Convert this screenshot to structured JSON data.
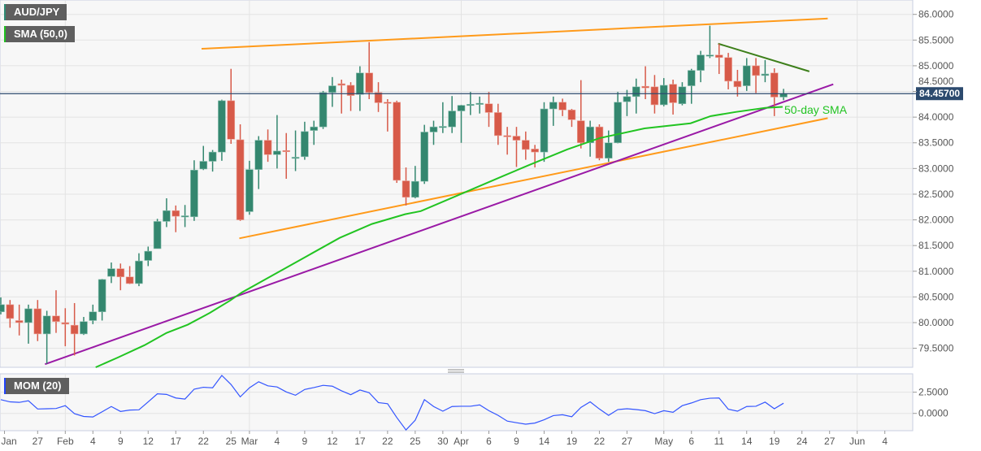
{
  "legend": {
    "symbol_label": "AUD/JPY",
    "sma_label": "SMA (50,0)",
    "mom_label": "MOM (20)"
  },
  "colors": {
    "up": "#34876f",
    "down": "#d75a49",
    "sma": "#22c422",
    "support_line": "#9a1aa6",
    "channel": "#ff9a1a",
    "resistance": "#3d7f1a",
    "mom": "#3355ff",
    "price_tag": "#2c4a6e",
    "symbol_accent": "#2e8b74",
    "sma_accent": "#1fc21f",
    "mom_accent": "#2244ff"
  },
  "chart_data": {
    "type": "candlestick",
    "title": "AUD/JPY",
    "last_price": 84.457,
    "last_price_label": "84.45700",
    "ylim": [
      79.13,
      86.28
    ],
    "y_ticks": [
      "86.0000",
      "85.5000",
      "85.0000",
      "84.5000",
      "84.0000",
      "83.5000",
      "83.0000",
      "82.5000",
      "82.0000",
      "81.5000",
      "81.0000",
      "80.5000",
      "80.0000",
      "79.5000"
    ],
    "x_ticks": [
      {
        "label": "Jan",
        "index": 0.4
      },
      {
        "label": "27",
        "index": 4
      },
      {
        "label": "Feb",
        "index": 7
      },
      {
        "label": "4",
        "index": 10
      },
      {
        "label": "9",
        "index": 13
      },
      {
        "label": "12",
        "index": 16
      },
      {
        "label": "17",
        "index": 19
      },
      {
        "label": "22",
        "index": 22
      },
      {
        "label": "25",
        "index": 25
      },
      {
        "label": "Mar",
        "index": 27
      },
      {
        "label": "4",
        "index": 30
      },
      {
        "label": "9",
        "index": 33
      },
      {
        "label": "12",
        "index": 36
      },
      {
        "label": "17",
        "index": 39
      },
      {
        "label": "22",
        "index": 42
      },
      {
        "label": "25",
        "index": 45
      },
      {
        "label": "30",
        "index": 48
      },
      {
        "label": "Apr",
        "index": 50
      },
      {
        "label": "6",
        "index": 53
      },
      {
        "label": "9",
        "index": 56
      },
      {
        "label": "14",
        "index": 59
      },
      {
        "label": "19",
        "index": 62
      },
      {
        "label": "22",
        "index": 65
      },
      {
        "label": "27",
        "index": 68
      },
      {
        "label": "May",
        "index": 72
      },
      {
        "label": "6",
        "index": 75
      },
      {
        "label": "11",
        "index": 78
      },
      {
        "label": "14",
        "index": 81
      },
      {
        "label": "19",
        "index": 84
      },
      {
        "label": "24",
        "index": 87
      },
      {
        "label": "27",
        "index": 90
      },
      {
        "label": "Jun",
        "index": 93
      },
      {
        "label": "4",
        "index": 96
      }
    ],
    "month_gridlines": [
      7,
      27,
      50,
      72,
      93
    ],
    "ohlc_fields": [
      "open",
      "high",
      "low",
      "close"
    ],
    "candles": [
      [
        80.21,
        80.49,
        80.16,
        80.35
      ],
      [
        80.35,
        80.44,
        79.9,
        80.08
      ],
      [
        80.04,
        80.35,
        79.75,
        80.0
      ],
      [
        80.0,
        80.35,
        79.59,
        80.27
      ],
      [
        80.27,
        80.44,
        79.64,
        79.78
      ],
      [
        79.78,
        80.23,
        79.2,
        80.13
      ],
      [
        80.13,
        80.63,
        79.8,
        80.02
      ],
      [
        80.0,
        80.28,
        79.54,
        79.97
      ],
      [
        79.95,
        80.38,
        79.36,
        79.78
      ],
      [
        79.78,
        80.11,
        79.76,
        80.02
      ],
      [
        80.04,
        80.35,
        79.97,
        80.21
      ],
      [
        80.21,
        80.85,
        80.04,
        80.84
      ],
      [
        80.9,
        81.17,
        80.77,
        81.05
      ],
      [
        81.05,
        81.15,
        80.63,
        80.89
      ],
      [
        80.89,
        81.1,
        80.75,
        80.76
      ],
      [
        80.76,
        81.35,
        80.71,
        81.2
      ],
      [
        81.21,
        81.48,
        81.1,
        81.39
      ],
      [
        81.44,
        82.02,
        81.44,
        81.97
      ],
      [
        81.97,
        82.42,
        81.86,
        82.18
      ],
      [
        82.18,
        82.28,
        81.76,
        82.07
      ],
      [
        82.06,
        82.29,
        81.86,
        82.08
      ],
      [
        82.06,
        83.16,
        81.98,
        82.97
      ],
      [
        82.99,
        83.44,
        82.97,
        83.14
      ],
      [
        83.14,
        83.36,
        82.94,
        83.32
      ],
      [
        83.32,
        84.34,
        83.15,
        84.32
      ],
      [
        84.32,
        84.94,
        83.48,
        83.57
      ],
      [
        83.56,
        83.86,
        81.98,
        82.0
      ],
      [
        82.16,
        83.15,
        82.1,
        82.98
      ],
      [
        82.98,
        83.63,
        82.6,
        83.55
      ],
      [
        83.55,
        83.76,
        83.13,
        83.27
      ],
      [
        83.27,
        84.04,
        83.0,
        83.34
      ],
      [
        83.35,
        83.69,
        82.8,
        83.33
      ],
      [
        83.2,
        83.74,
        82.95,
        83.22
      ],
      [
        83.23,
        83.91,
        83.17,
        83.72
      ],
      [
        83.74,
        83.93,
        83.46,
        83.81
      ],
      [
        83.81,
        84.51,
        83.77,
        84.48
      ],
      [
        84.48,
        84.78,
        84.2,
        84.61
      ],
      [
        84.65,
        84.73,
        84.07,
        84.62
      ],
      [
        84.62,
        84.68,
        84.12,
        84.42
      ],
      [
        84.44,
        84.99,
        84.12,
        84.86
      ],
      [
        84.86,
        85.46,
        84.35,
        84.48
      ],
      [
        84.48,
        84.68,
        84.1,
        84.28
      ],
      [
        84.29,
        84.35,
        83.72,
        84.27
      ],
      [
        84.29,
        84.32,
        82.72,
        82.77
      ],
      [
        82.76,
        83.02,
        82.28,
        82.44
      ],
      [
        82.44,
        83.05,
        82.42,
        82.75
      ],
      [
        82.75,
        83.85,
        82.7,
        83.71
      ],
      [
        83.71,
        83.93,
        83.46,
        83.81
      ],
      [
        83.81,
        84.29,
        83.69,
        83.82
      ],
      [
        83.81,
        84.41,
        83.69,
        84.12
      ],
      [
        84.12,
        84.24,
        83.5,
        84.23
      ],
      [
        84.23,
        84.49,
        84.04,
        84.25
      ],
      [
        84.25,
        84.4,
        84.07,
        84.27
      ],
      [
        84.26,
        84.49,
        83.81,
        84.09
      ],
      [
        84.09,
        84.26,
        83.46,
        83.64
      ],
      [
        83.64,
        83.81,
        83.27,
        83.62
      ],
      [
        83.63,
        83.81,
        83.03,
        83.55
      ],
      [
        83.55,
        83.72,
        83.17,
        83.37
      ],
      [
        83.38,
        83.46,
        83.02,
        83.32
      ],
      [
        83.32,
        84.29,
        83.13,
        84.16
      ],
      [
        84.16,
        84.4,
        83.83,
        84.29
      ],
      [
        84.29,
        84.36,
        84.02,
        84.14
      ],
      [
        84.14,
        84.16,
        83.81,
        83.95
      ],
      [
        83.93,
        84.72,
        83.39,
        83.5
      ],
      [
        83.5,
        83.93,
        83.23,
        83.81
      ],
      [
        83.81,
        83.86,
        83.16,
        83.2
      ],
      [
        83.2,
        83.74,
        83.13,
        83.5
      ],
      [
        83.5,
        84.49,
        83.49,
        84.29
      ],
      [
        84.3,
        84.53,
        84.02,
        84.4
      ],
      [
        84.4,
        84.75,
        84.07,
        84.59
      ],
      [
        84.6,
        84.99,
        84.35,
        84.57
      ],
      [
        84.59,
        84.82,
        84.07,
        84.24
      ],
      [
        84.24,
        84.76,
        84.21,
        84.62
      ],
      [
        84.64,
        84.73,
        84.05,
        84.28
      ],
      [
        84.26,
        84.68,
        84.23,
        84.59
      ],
      [
        84.61,
        84.94,
        84.26,
        84.91
      ],
      [
        84.91,
        85.29,
        84.68,
        85.21
      ],
      [
        85.19,
        85.78,
        85.15,
        85.21
      ],
      [
        85.21,
        85.43,
        84.84,
        85.16
      ],
      [
        85.16,
        85.25,
        84.54,
        84.7
      ],
      [
        84.7,
        84.92,
        84.4,
        84.59
      ],
      [
        84.61,
        85.15,
        84.51,
        85.0
      ],
      [
        85.0,
        85.15,
        84.47,
        84.81
      ],
      [
        84.81,
        85.11,
        84.68,
        84.84
      ],
      [
        84.86,
        84.95,
        84.02,
        84.39
      ],
      [
        84.39,
        84.55,
        84.33,
        84.457
      ]
    ],
    "sma_50": {
      "label": "50-day SMA",
      "points": [
        [
          10.3,
          79.13
        ],
        [
          12.7,
          79.32
        ],
        [
          15.6,
          79.56
        ],
        [
          18,
          79.8
        ],
        [
          20.3,
          79.96
        ],
        [
          22.7,
          80.19
        ],
        [
          24.9,
          80.43
        ],
        [
          26.2,
          80.59
        ],
        [
          29.7,
          80.94
        ],
        [
          33.3,
          81.3
        ],
        [
          36.8,
          81.65
        ],
        [
          40.3,
          81.92
        ],
        [
          43.9,
          82.11
        ],
        [
          45.6,
          82.17
        ],
        [
          49.8,
          82.49
        ],
        [
          54.5,
          82.85
        ],
        [
          57.4,
          83.07
        ],
        [
          61.5,
          83.37
        ],
        [
          65,
          83.59
        ],
        [
          69.9,
          83.78
        ],
        [
          74.9,
          83.88
        ],
        [
          77.1,
          84.02
        ],
        [
          79.8,
          84.1
        ],
        [
          83,
          84.18
        ],
        [
          84.9,
          84.2
        ]
      ]
    },
    "trendlines": [
      {
        "name": "upper-channel",
        "color_key": "channel",
        "from": [
          21.8,
          85.33
        ],
        "to": [
          89.8,
          85.92
        ]
      },
      {
        "name": "lower-channel",
        "color_key": "channel",
        "from": [
          25.9,
          81.64
        ],
        "to": [
          89.8,
          83.98
        ]
      },
      {
        "name": "support-trendline",
        "color_key": "support_line",
        "from": [
          4.8,
          79.19
        ],
        "to": [
          90.4,
          84.64
        ]
      },
      {
        "name": "resistance-trendline",
        "color_key": "resistance",
        "from": [
          77.9,
          85.43
        ],
        "to": [
          87.8,
          84.89
        ]
      }
    ],
    "momentum": {
      "name": "MOM (20)",
      "ylim": [
        -2.04,
        4.67
      ],
      "y_ticks": [
        {
          "label": "2.5000",
          "value": 2.5
        },
        {
          "label": "0.0000",
          "value": 0
        }
      ],
      "values": [
        1.62,
        1.36,
        1.3,
        1.49,
        0.52,
        0.55,
        0.58,
        0.91,
        -0.03,
        -0.36,
        -0.42,
        0.19,
        0.81,
        0.23,
        0.39,
        0.42,
        1.36,
        2.31,
        2.24,
        1.82,
        1.69,
        2.86,
        3.08,
        3.02,
        4.48,
        3.41,
        1.95,
        3.02,
        3.73,
        3.25,
        3.12,
        2.53,
        2.14,
        2.82,
        3.05,
        3.31,
        3.21,
        2.66,
        2.21,
        2.76,
        2.44,
        1.27,
        1.14,
        -0.49,
        -1.95,
        -0.81,
        1.62,
        0.81,
        0.26,
        0.81,
        0.84,
        0.84,
        1.0,
        0.32,
        -0.23,
        -0.91,
        -1.1,
        -1.27,
        -1.14,
        -0.75,
        -0.26,
        -0.16,
        -0.39,
        0.71,
        1.36,
        0.52,
        -0.23,
        0.45,
        0.55,
        0.45,
        0.32,
        -0.03,
        0.32,
        0.13,
        0.91,
        1.23,
        1.62,
        1.79,
        1.82,
        0.49,
        0.26,
        0.81,
        0.84,
        1.33,
        0.55,
        1.2
      ]
    }
  }
}
